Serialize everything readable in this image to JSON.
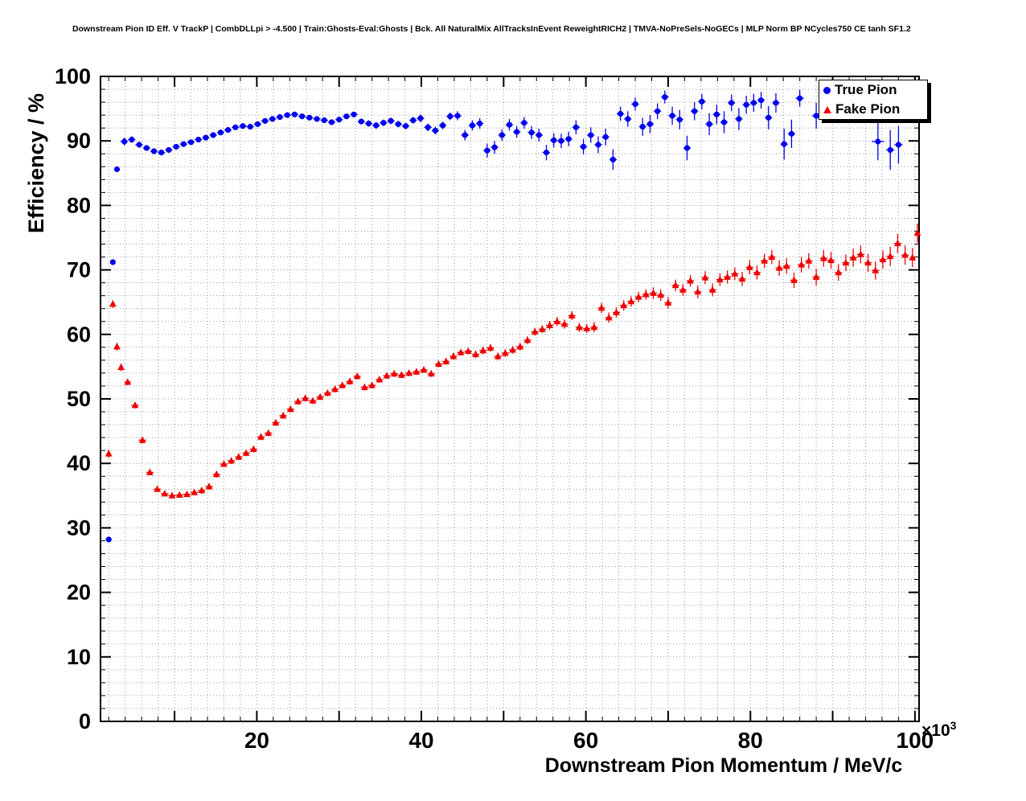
{
  "chart_data": {
    "type": "scatter",
    "title": "Downstream Pion ID Eff. V TrackP | CombDLLpi > -4.500 | Train:Ghosts-Eval:Ghosts | Bck. All NaturalMix AllTracksInEvent ReweightRICH2 | TMVA-NoPreSels-NoGECs | MLP Norm BP NCycles750 CE tanh SF1.2",
    "xlabel": "Downstream Pion Momentum / MeV/c",
    "ylabel": "Efficiency / %",
    "x_exponent": {
      "base": "×10",
      "sup": "3"
    },
    "xlim": [
      1,
      100.5
    ],
    "ylim": [
      0,
      100
    ],
    "x_major_ticks": [
      20,
      40,
      60,
      80,
      100
    ],
    "y_major_ticks": [
      0,
      10,
      20,
      30,
      40,
      50,
      60,
      70,
      80,
      90,
      100
    ],
    "minor_step": 2,
    "grid": true,
    "grid_color": "#999999",
    "frame_color": "#000000",
    "legend": {
      "position": "top-right",
      "entries": [
        {
          "label": "True Pion",
          "marker": "circle",
          "color": "#0000ee"
        },
        {
          "label": "Fake Pion",
          "marker": "triangle",
          "color": "#ee0000"
        }
      ]
    },
    "series": [
      {
        "name": "True Pion",
        "marker": "circle",
        "color": "#0000ee",
        "points": [
          [
            2,
            28.2,
            0.4
          ],
          [
            2.5,
            71.2,
            0.4
          ],
          [
            3,
            85.6,
            0.4
          ],
          [
            3.9,
            89.9,
            0.6
          ],
          [
            4.8,
            90.2,
            0.5
          ],
          [
            5.7,
            89.4,
            0.4
          ],
          [
            6.6,
            88.9,
            0.4
          ],
          [
            7.5,
            88.4,
            0.3
          ],
          [
            8.4,
            88.2,
            0.3
          ],
          [
            9.3,
            88.6,
            0.3
          ],
          [
            10.2,
            89.1,
            0.3
          ],
          [
            11.1,
            89.5,
            0.3
          ],
          [
            12,
            89.8,
            0.3
          ],
          [
            12.9,
            90.2,
            0.3
          ],
          [
            13.8,
            90.5,
            0.3
          ],
          [
            14.7,
            90.9,
            0.3
          ],
          [
            15.6,
            91.3,
            0.3
          ],
          [
            16.5,
            91.7,
            0.3
          ],
          [
            17.4,
            92.1,
            0.3
          ],
          [
            18.3,
            92.3,
            0.3
          ],
          [
            19.2,
            92.2,
            0.3
          ],
          [
            20.1,
            92.6,
            0.3
          ],
          [
            21,
            93.1,
            0.3
          ],
          [
            21.9,
            93.4,
            0.3
          ],
          [
            22.8,
            93.7,
            0.3
          ],
          [
            23.7,
            94.0,
            0.3
          ],
          [
            24.6,
            94.1,
            0.3
          ],
          [
            25.5,
            93.8,
            0.3
          ],
          [
            26.4,
            93.6,
            0.3
          ],
          [
            27.3,
            93.4,
            0.4
          ],
          [
            28.2,
            93.2,
            0.4
          ],
          [
            29.1,
            92.9,
            0.4
          ],
          [
            30,
            93.3,
            0.4
          ],
          [
            30.9,
            93.8,
            0.4
          ],
          [
            31.8,
            94.1,
            0.4
          ],
          [
            32.7,
            93.0,
            0.4
          ],
          [
            33.6,
            92.7,
            0.5
          ],
          [
            34.5,
            92.4,
            0.5
          ],
          [
            35.4,
            92.8,
            0.5
          ],
          [
            36.3,
            93.1,
            0.5
          ],
          [
            37.2,
            92.6,
            0.5
          ],
          [
            38.1,
            92.3,
            0.5
          ],
          [
            39,
            93.2,
            0.5
          ],
          [
            39.9,
            93.5,
            0.6
          ],
          [
            40.8,
            92.1,
            0.6
          ],
          [
            41.7,
            91.6,
            0.6
          ],
          [
            42.6,
            92.4,
            0.6
          ],
          [
            43.5,
            93.8,
            0.6
          ],
          [
            44.4,
            93.9,
            0.7
          ],
          [
            45.3,
            90.9,
            0.8
          ],
          [
            46.2,
            92.4,
            0.8
          ],
          [
            47.1,
            92.7,
            0.8
          ],
          [
            48,
            88.5,
            1.1
          ],
          [
            48.9,
            89.0,
            1.0
          ],
          [
            49.8,
            90.9,
            0.9
          ],
          [
            50.7,
            92.5,
            0.9
          ],
          [
            51.6,
            91.4,
            0.9
          ],
          [
            52.5,
            92.8,
            0.9
          ],
          [
            53.4,
            91.3,
            1.0
          ],
          [
            54.3,
            90.9,
            1.0
          ],
          [
            55.2,
            88.2,
            1.2
          ],
          [
            56.1,
            90.1,
            1.1
          ],
          [
            57,
            90.0,
            1.1
          ],
          [
            57.9,
            90.3,
            1.1
          ],
          [
            58.8,
            92.1,
            1.1
          ],
          [
            59.7,
            89.1,
            1.2
          ],
          [
            60.6,
            90.9,
            1.2
          ],
          [
            61.5,
            89.4,
            1.3
          ],
          [
            62.4,
            90.6,
            1.3
          ],
          [
            63.3,
            87.1,
            1.6
          ],
          [
            64.2,
            94.2,
            1.1
          ],
          [
            65.1,
            93.4,
            1.2
          ],
          [
            66,
            95.7,
            1.0
          ],
          [
            66.9,
            92.2,
            1.4
          ],
          [
            67.8,
            92.6,
            1.4
          ],
          [
            68.7,
            94.6,
            1.2
          ],
          [
            69.6,
            96.8,
            1.0
          ],
          [
            70.5,
            93.9,
            1.4
          ],
          [
            71.4,
            93.3,
            1.5
          ],
          [
            72.3,
            88.9,
            1.9
          ],
          [
            73.2,
            94.6,
            1.4
          ],
          [
            74.1,
            96.1,
            1.2
          ],
          [
            75,
            92.6,
            1.7
          ],
          [
            75.9,
            94.1,
            1.5
          ],
          [
            76.8,
            92.9,
            1.7
          ],
          [
            77.7,
            95.9,
            1.3
          ],
          [
            78.6,
            93.4,
            1.7
          ],
          [
            79.5,
            95.6,
            1.4
          ],
          [
            80.4,
            95.9,
            1.4
          ],
          [
            81.3,
            96.3,
            1.3
          ],
          [
            82.2,
            93.6,
            1.8
          ],
          [
            83.1,
            95.9,
            1.5
          ],
          [
            84.1,
            89.5,
            2.4
          ],
          [
            85,
            91.1,
            2.2
          ],
          [
            86,
            96.6,
            1.3
          ],
          [
            88,
            93.9,
            2.0
          ],
          [
            89,
            94.9,
            1.8
          ],
          [
            95.5,
            89.9,
            2.9
          ],
          [
            97,
            88.6,
            3.1
          ],
          [
            98,
            89.4,
            2.9
          ]
        ]
      },
      {
        "name": "Fake Pion",
        "marker": "triangle",
        "color": "#ee0000",
        "points": [
          [
            2,
            41.5,
            0.6
          ],
          [
            2.5,
            64.7,
            0.6
          ],
          [
            3,
            58.1,
            0.6
          ],
          [
            3.5,
            54.9,
            0.6
          ],
          [
            4.3,
            52.6,
            0.5
          ],
          [
            5.2,
            49.0,
            0.5
          ],
          [
            6.1,
            43.6,
            0.5
          ],
          [
            7,
            38.6,
            0.4
          ],
          [
            7.9,
            36.0,
            0.4
          ],
          [
            8.8,
            35.3,
            0.4
          ],
          [
            9.7,
            35.0,
            0.4
          ],
          [
            10.6,
            35.1,
            0.4
          ],
          [
            11.5,
            35.2,
            0.4
          ],
          [
            12.4,
            35.5,
            0.4
          ],
          [
            13.3,
            35.8,
            0.5
          ],
          [
            14.2,
            36.4,
            0.5
          ],
          [
            15.1,
            38.3,
            0.5
          ],
          [
            16,
            39.9,
            0.5
          ],
          [
            16.9,
            40.4,
            0.5
          ],
          [
            17.8,
            41.0,
            0.5
          ],
          [
            18.7,
            41.6,
            0.5
          ],
          [
            19.6,
            42.2,
            0.5
          ],
          [
            20.5,
            44.1,
            0.5
          ],
          [
            21.4,
            44.7,
            0.5
          ],
          [
            22.3,
            46.3,
            0.5
          ],
          [
            23.2,
            47.4,
            0.5
          ],
          [
            24.1,
            48.4,
            0.5
          ],
          [
            25,
            49.6,
            0.5
          ],
          [
            25.9,
            50.1,
            0.5
          ],
          [
            26.8,
            49.7,
            0.5
          ],
          [
            27.7,
            50.3,
            0.5
          ],
          [
            28.6,
            50.9,
            0.5
          ],
          [
            29.5,
            51.5,
            0.5
          ],
          [
            30.4,
            52.1,
            0.5
          ],
          [
            31.3,
            52.7,
            0.5
          ],
          [
            32.2,
            53.5,
            0.5
          ],
          [
            33.1,
            51.8,
            0.5
          ],
          [
            34,
            52.1,
            0.5
          ],
          [
            34.9,
            53.0,
            0.5
          ],
          [
            35.8,
            53.6,
            0.5
          ],
          [
            36.7,
            53.9,
            0.5
          ],
          [
            37.6,
            53.7,
            0.5
          ],
          [
            38.5,
            54.0,
            0.5
          ],
          [
            39.4,
            54.2,
            0.5
          ],
          [
            40.3,
            54.5,
            0.5
          ],
          [
            41.2,
            53.9,
            0.5
          ],
          [
            42.1,
            55.4,
            0.5
          ],
          [
            43,
            55.8,
            0.5
          ],
          [
            43.9,
            56.6,
            0.5
          ],
          [
            44.8,
            57.2,
            0.5
          ],
          [
            45.7,
            57.4,
            0.5
          ],
          [
            46.6,
            56.9,
            0.6
          ],
          [
            47.5,
            57.5,
            0.6
          ],
          [
            48.4,
            57.9,
            0.6
          ],
          [
            49.3,
            56.6,
            0.6
          ],
          [
            50.2,
            57.1,
            0.6
          ],
          [
            51.1,
            57.6,
            0.6
          ],
          [
            52,
            58.1,
            0.6
          ],
          [
            52.9,
            59.1,
            0.6
          ],
          [
            53.8,
            60.4,
            0.6
          ],
          [
            54.7,
            60.8,
            0.6
          ],
          [
            55.6,
            61.4,
            0.7
          ],
          [
            56.5,
            62.0,
            0.7
          ],
          [
            57.4,
            61.6,
            0.7
          ],
          [
            58.3,
            62.9,
            0.7
          ],
          [
            59.2,
            61.1,
            0.7
          ],
          [
            60.1,
            60.9,
            0.7
          ],
          [
            61,
            61.1,
            0.8
          ],
          [
            61.9,
            64.1,
            0.8
          ],
          [
            62.8,
            62.6,
            0.8
          ],
          [
            63.7,
            63.4,
            0.8
          ],
          [
            64.6,
            64.5,
            0.8
          ],
          [
            65.5,
            65.1,
            0.8
          ],
          [
            66.4,
            65.8,
            0.8
          ],
          [
            67.3,
            66.2,
            0.8
          ],
          [
            68.2,
            66.4,
            0.9
          ],
          [
            69.1,
            66.1,
            0.9
          ],
          [
            70,
            64.9,
            0.9
          ],
          [
            70.9,
            67.6,
            0.9
          ],
          [
            71.8,
            66.9,
            0.9
          ],
          [
            72.7,
            68.3,
            0.9
          ],
          [
            73.6,
            66.6,
            1.0
          ],
          [
            74.5,
            68.8,
            1.0
          ],
          [
            75.4,
            66.9,
            1.0
          ],
          [
            76.3,
            68.5,
            1.0
          ],
          [
            77.2,
            68.9,
            1.0
          ],
          [
            78.1,
            69.4,
            1.0
          ],
          [
            79,
            68.6,
            1.1
          ],
          [
            79.9,
            70.4,
            1.1
          ],
          [
            80.8,
            69.6,
            1.1
          ],
          [
            81.7,
            71.4,
            1.1
          ],
          [
            82.6,
            72.0,
            1.1
          ],
          [
            83.5,
            70.3,
            1.2
          ],
          [
            84.4,
            70.6,
            1.2
          ],
          [
            85.3,
            68.4,
            1.2
          ],
          [
            86.2,
            70.8,
            1.2
          ],
          [
            87.1,
            71.4,
            1.2
          ],
          [
            88,
            68.9,
            1.3
          ],
          [
            88.9,
            71.8,
            1.3
          ],
          [
            89.8,
            71.5,
            1.3
          ],
          [
            90.7,
            69.6,
            1.3
          ],
          [
            91.6,
            71.1,
            1.3
          ],
          [
            92.5,
            71.9,
            1.4
          ],
          [
            93.4,
            72.4,
            1.4
          ],
          [
            94.3,
            71.1,
            1.4
          ],
          [
            95.2,
            69.9,
            1.4
          ],
          [
            96.1,
            71.6,
            1.4
          ],
          [
            97,
            72.1,
            1.5
          ],
          [
            97.9,
            74.1,
            1.5
          ],
          [
            98.8,
            72.3,
            1.5
          ],
          [
            99.7,
            71.9,
            1.5
          ],
          [
            100.3,
            75.7,
            1.5
          ]
        ]
      }
    ]
  }
}
